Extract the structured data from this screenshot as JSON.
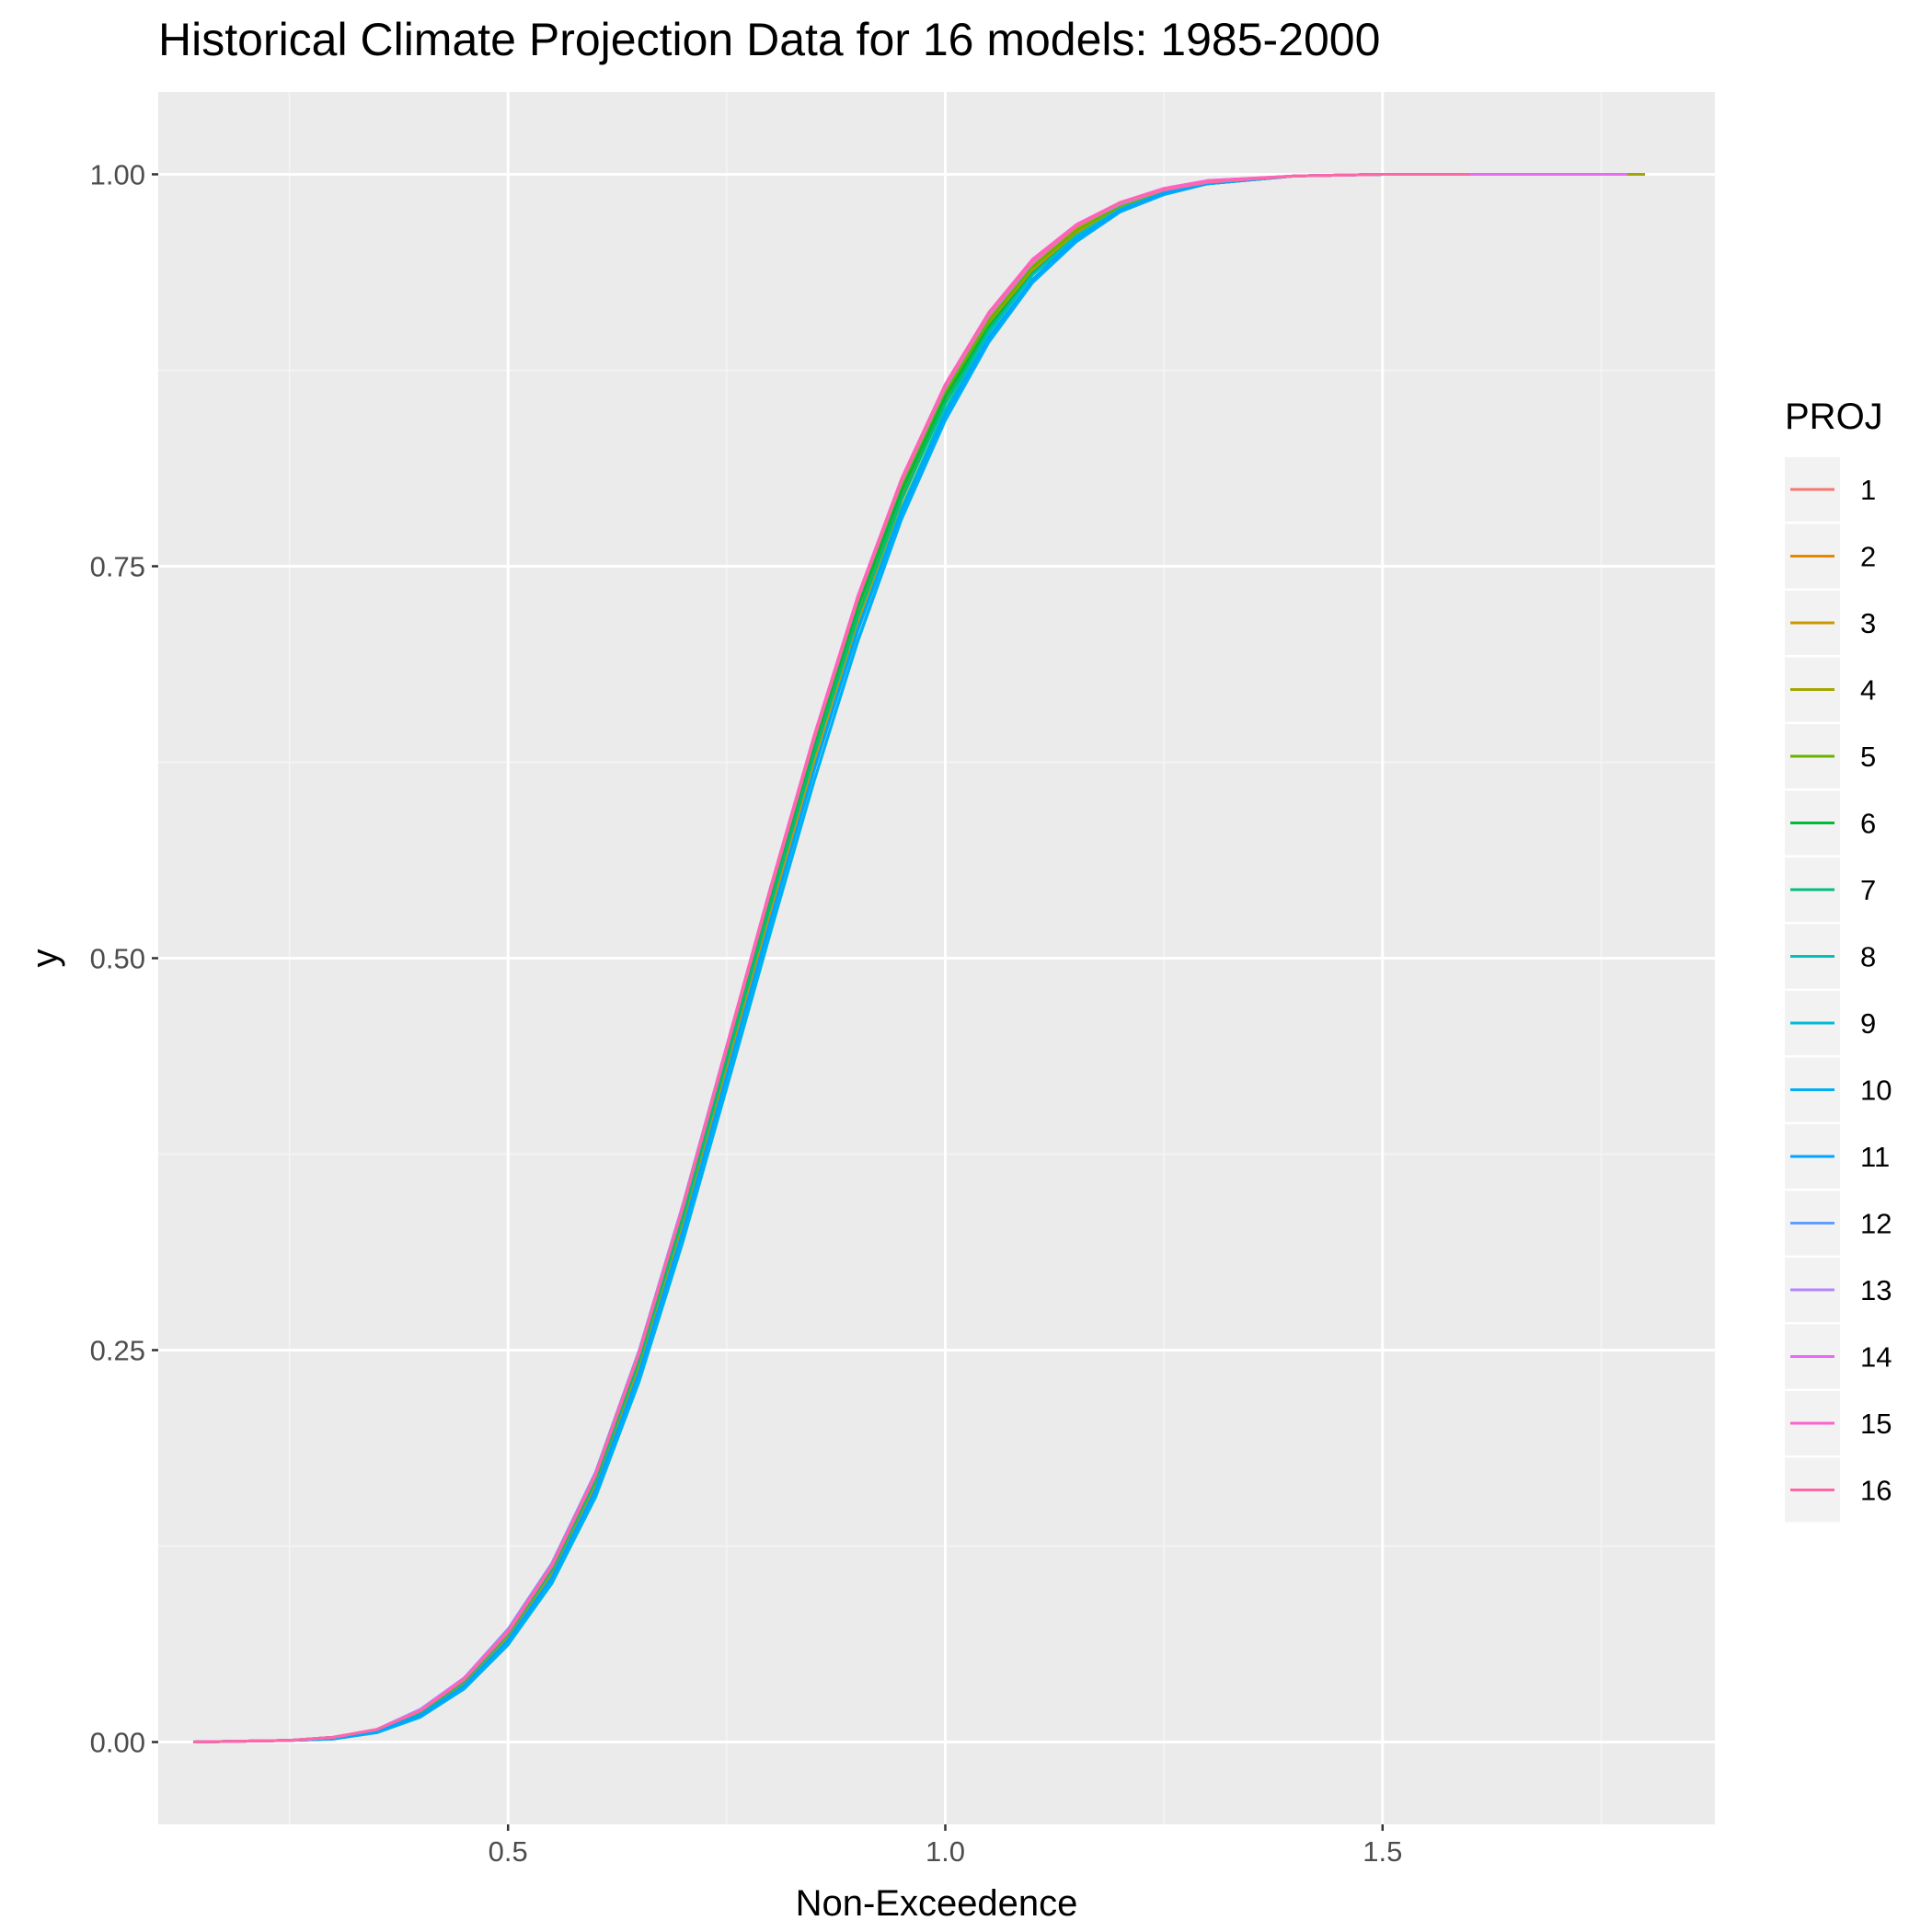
{
  "chart_data": {
    "type": "line",
    "title": "Historical Climate Projection Data for 16 models: 1985-2000",
    "xlabel": "Non-Exceedence",
    "ylabel": "y",
    "xlim": [
      0.1,
      1.88
    ],
    "ylim": [
      -0.0525,
      1.0525
    ],
    "x_ticks": [
      0.5,
      1.0,
      1.5
    ],
    "x_tick_labels": [
      "0.5",
      "1.0",
      "1.5"
    ],
    "y_ticks": [
      0.0,
      0.25,
      0.5,
      0.75,
      1.0
    ],
    "y_tick_labels": [
      "0.00",
      "0.25",
      "0.50",
      "0.75",
      "1.00"
    ],
    "grid": true,
    "legend": {
      "title": "PROJ",
      "position": "right"
    },
    "series": [
      {
        "name": "1",
        "color": "#F8766D",
        "x": [
          0.14,
          0.25,
          0.3,
          0.35,
          0.4,
          0.45,
          0.5,
          0.55,
          0.6,
          0.65,
          0.7,
          0.75,
          0.8,
          0.85,
          0.9,
          0.95,
          1.0,
          1.05,
          1.1,
          1.15,
          1.2,
          1.25,
          1.3,
          1.4,
          1.5,
          1.6
        ],
        "y": [
          0.0,
          0.001,
          0.003,
          0.008,
          0.02,
          0.04,
          0.07,
          0.112,
          0.17,
          0.248,
          0.34,
          0.441,
          0.541,
          0.638,
          0.727,
          0.802,
          0.863,
          0.909,
          0.943,
          0.966,
          0.981,
          0.99,
          0.995,
          0.999,
          1.0,
          1.0
        ]
      },
      {
        "name": "2",
        "color": "#E58700",
        "x": [
          0.14,
          0.25,
          0.3,
          0.35,
          0.4,
          0.45,
          0.5,
          0.55,
          0.6,
          0.65,
          0.7,
          0.75,
          0.8,
          0.85,
          0.9,
          0.95,
          1.0,
          1.05,
          1.1,
          1.15,
          1.2,
          1.25,
          1.3,
          1.4,
          1.5,
          1.6
        ],
        "y": [
          0.0,
          0.001,
          0.003,
          0.007,
          0.019,
          0.038,
          0.067,
          0.108,
          0.164,
          0.24,
          0.33,
          0.43,
          0.53,
          0.628,
          0.718,
          0.795,
          0.857,
          0.905,
          0.94,
          0.964,
          0.98,
          0.989,
          0.995,
          0.999,
          1.0,
          1.0
        ]
      },
      {
        "name": "3",
        "color": "#C99800",
        "x": [
          0.14,
          0.25,
          0.3,
          0.35,
          0.4,
          0.45,
          0.5,
          0.55,
          0.6,
          0.65,
          0.7,
          0.75,
          0.8,
          0.85,
          0.9,
          0.95,
          1.0,
          1.05,
          1.1,
          1.15,
          1.2,
          1.25,
          1.3,
          1.4,
          1.5,
          1.6
        ],
        "y": [
          0.0,
          0.001,
          0.003,
          0.007,
          0.018,
          0.037,
          0.066,
          0.106,
          0.161,
          0.236,
          0.326,
          0.425,
          0.525,
          0.623,
          0.714,
          0.792,
          0.855,
          0.903,
          0.939,
          0.963,
          0.979,
          0.989,
          0.995,
          0.999,
          1.0,
          1.0
        ]
      },
      {
        "name": "4",
        "color": "#A3A500",
        "x": [
          0.14,
          0.25,
          0.3,
          0.35,
          0.4,
          0.45,
          0.5,
          0.55,
          0.6,
          0.65,
          0.7,
          0.75,
          0.8,
          0.85,
          0.9,
          0.95,
          1.0,
          1.05,
          1.1,
          1.15,
          1.2,
          1.25,
          1.3,
          1.4,
          1.5,
          1.6,
          1.8
        ],
        "y": [
          0.0,
          0.001,
          0.003,
          0.007,
          0.019,
          0.038,
          0.068,
          0.109,
          0.166,
          0.242,
          0.333,
          0.433,
          0.533,
          0.631,
          0.721,
          0.797,
          0.859,
          0.906,
          0.941,
          0.965,
          0.98,
          0.99,
          0.995,
          0.999,
          1.0,
          1.0,
          1.0
        ]
      },
      {
        "name": "5",
        "color": "#6BB100",
        "x": [
          0.14,
          0.25,
          0.3,
          0.35,
          0.4,
          0.45,
          0.5,
          0.55,
          0.6,
          0.65,
          0.7,
          0.75,
          0.8,
          0.85,
          0.9,
          0.95,
          1.0,
          1.05,
          1.1,
          1.15,
          1.2,
          1.25,
          1.3,
          1.4,
          1.5,
          1.6
        ],
        "y": [
          0.0,
          0.001,
          0.003,
          0.008,
          0.02,
          0.04,
          0.07,
          0.111,
          0.169,
          0.246,
          0.338,
          0.439,
          0.539,
          0.636,
          0.725,
          0.8,
          0.861,
          0.907,
          0.941,
          0.964,
          0.98,
          0.989,
          0.995,
          0.999,
          1.0,
          1.0
        ]
      },
      {
        "name": "6",
        "color": "#00BA38",
        "x": [
          0.14,
          0.25,
          0.3,
          0.35,
          0.4,
          0.45,
          0.5,
          0.55,
          0.6,
          0.65,
          0.7,
          0.75,
          0.8,
          0.85,
          0.9,
          0.95,
          1.0,
          1.05,
          1.1,
          1.15,
          1.2,
          1.25,
          1.3,
          1.4,
          1.5,
          1.6
        ],
        "y": [
          0.0,
          0.001,
          0.003,
          0.008,
          0.02,
          0.04,
          0.071,
          0.113,
          0.171,
          0.248,
          0.34,
          0.441,
          0.54,
          0.636,
          0.724,
          0.798,
          0.858,
          0.903,
          0.937,
          0.961,
          0.977,
          0.988,
          0.994,
          0.999,
          1.0,
          1.0
        ]
      },
      {
        "name": "7",
        "color": "#00BF7D",
        "x": [
          0.14,
          0.25,
          0.3,
          0.35,
          0.4,
          0.45,
          0.5,
          0.55,
          0.6,
          0.65,
          0.7,
          0.75,
          0.8,
          0.85,
          0.9,
          0.95,
          1.0,
          1.05,
          1.1,
          1.15,
          1.2,
          1.25,
          1.3,
          1.4,
          1.5,
          1.6
        ],
        "y": [
          0.0,
          0.001,
          0.003,
          0.007,
          0.019,
          0.039,
          0.069,
          0.11,
          0.167,
          0.244,
          0.335,
          0.435,
          0.534,
          0.63,
          0.718,
          0.793,
          0.854,
          0.901,
          0.936,
          0.96,
          0.977,
          0.987,
          0.994,
          0.999,
          1.0,
          1.0
        ]
      },
      {
        "name": "8",
        "color": "#00C0B8",
        "x": [
          0.14,
          0.25,
          0.3,
          0.35,
          0.4,
          0.45,
          0.5,
          0.55,
          0.6,
          0.65,
          0.7,
          0.75,
          0.8,
          0.85,
          0.9,
          0.95,
          1.0,
          1.05,
          1.1,
          1.15,
          1.2,
          1.25,
          1.3,
          1.4,
          1.5,
          1.6
        ],
        "y": [
          0.0,
          0.001,
          0.002,
          0.006,
          0.017,
          0.035,
          0.064,
          0.104,
          0.16,
          0.235,
          0.325,
          0.424,
          0.523,
          0.62,
          0.71,
          0.787,
          0.85,
          0.899,
          0.936,
          0.961,
          0.978,
          0.988,
          0.994,
          0.999,
          1.0,
          1.0
        ]
      },
      {
        "name": "9",
        "color": "#00BCD8",
        "x": [
          0.14,
          0.25,
          0.3,
          0.35,
          0.4,
          0.45,
          0.5,
          0.55,
          0.6,
          0.65,
          0.7,
          0.75,
          0.8,
          0.85,
          0.9,
          0.95,
          1.0,
          1.05,
          1.1,
          1.15,
          1.2,
          1.25,
          1.3,
          1.4,
          1.5,
          1.6
        ],
        "y": [
          0.0,
          0.001,
          0.002,
          0.006,
          0.016,
          0.034,
          0.062,
          0.101,
          0.156,
          0.23,
          0.319,
          0.417,
          0.516,
          0.613,
          0.703,
          0.781,
          0.845,
          0.895,
          0.933,
          0.959,
          0.977,
          0.988,
          0.994,
          0.999,
          1.0,
          1.0
        ]
      },
      {
        "name": "10",
        "color": "#00B0F6",
        "x": [
          0.14,
          0.25,
          0.3,
          0.35,
          0.4,
          0.45,
          0.5,
          0.55,
          0.6,
          0.65,
          0.7,
          0.75,
          0.8,
          0.85,
          0.9,
          0.95,
          1.0,
          1.05,
          1.1,
          1.15,
          1.2,
          1.25,
          1.3,
          1.4,
          1.5,
          1.6
        ],
        "y": [
          0.0,
          0.001,
          0.002,
          0.006,
          0.016,
          0.034,
          0.062,
          0.102,
          0.157,
          0.231,
          0.32,
          0.418,
          0.517,
          0.613,
          0.702,
          0.78,
          0.843,
          0.893,
          0.931,
          0.957,
          0.976,
          0.987,
          0.994,
          0.999,
          1.0,
          1.0
        ]
      },
      {
        "name": "11",
        "color": "#00A5FF",
        "x": [
          0.14,
          0.25,
          0.3,
          0.35,
          0.4,
          0.45,
          0.5,
          0.55,
          0.6,
          0.65,
          0.7,
          0.75,
          0.8,
          0.85,
          0.9,
          0.95,
          1.0,
          1.05,
          1.1,
          1.15,
          1.2,
          1.25,
          1.3,
          1.4,
          1.5,
          1.6
        ],
        "y": [
          0.0,
          0.001,
          0.002,
          0.007,
          0.017,
          0.036,
          0.065,
          0.105,
          0.161,
          0.236,
          0.326,
          0.425,
          0.524,
          0.62,
          0.709,
          0.785,
          0.847,
          0.896,
          0.933,
          0.959,
          0.977,
          0.988,
          0.994,
          0.999,
          1.0,
          1.0
        ]
      },
      {
        "name": "12",
        "color": "#619CFF",
        "x": [
          0.14,
          0.25,
          0.3,
          0.35,
          0.4,
          0.45,
          0.5,
          0.55,
          0.6,
          0.65,
          0.7,
          0.75,
          0.8,
          0.85,
          0.9,
          0.95,
          1.0,
          1.05,
          1.1,
          1.15,
          1.2,
          1.25,
          1.3,
          1.4,
          1.5,
          1.6
        ],
        "y": [
          0.0,
          0.001,
          0.003,
          0.008,
          0.021,
          0.041,
          0.072,
          0.114,
          0.172,
          0.25,
          0.343,
          0.444,
          0.544,
          0.641,
          0.73,
          0.805,
          0.865,
          0.911,
          0.945,
          0.967,
          0.982,
          0.99,
          0.995,
          0.999,
          1.0,
          1.0
        ]
      },
      {
        "name": "13",
        "color": "#B983FF",
        "x": [
          0.14,
          0.25,
          0.3,
          0.35,
          0.4,
          0.45,
          0.5,
          0.55,
          0.6,
          0.65,
          0.7,
          0.75,
          0.8,
          0.85,
          0.9,
          0.95,
          1.0,
          1.05,
          1.1,
          1.15,
          1.2,
          1.25,
          1.3,
          1.4,
          1.5,
          1.6
        ],
        "y": [
          0.0,
          0.001,
          0.003,
          0.008,
          0.021,
          0.041,
          0.071,
          0.113,
          0.171,
          0.249,
          0.342,
          0.443,
          0.543,
          0.64,
          0.729,
          0.804,
          0.864,
          0.91,
          0.944,
          0.967,
          0.981,
          0.99,
          0.995,
          0.999,
          1.0,
          1.0
        ]
      },
      {
        "name": "14",
        "color": "#E76BF3",
        "x": [
          0.14,
          0.25,
          0.3,
          0.35,
          0.4,
          0.45,
          0.5,
          0.55,
          0.6,
          0.65,
          0.7,
          0.75,
          0.8,
          0.85,
          0.9,
          0.95,
          1.0,
          1.05,
          1.1,
          1.15,
          1.2,
          1.25,
          1.3,
          1.4,
          1.5,
          1.6,
          1.78
        ],
        "y": [
          0.0,
          0.001,
          0.003,
          0.008,
          0.02,
          0.041,
          0.071,
          0.113,
          0.171,
          0.249,
          0.342,
          0.443,
          0.543,
          0.64,
          0.729,
          0.805,
          0.866,
          0.912,
          0.945,
          0.968,
          0.982,
          0.991,
          0.996,
          0.999,
          1.0,
          1.0,
          1.0
        ]
      },
      {
        "name": "15",
        "color": "#FD61D1",
        "x": [
          0.14,
          0.25,
          0.3,
          0.35,
          0.4,
          0.45,
          0.5,
          0.55,
          0.6,
          0.65,
          0.7,
          0.75,
          0.8,
          0.85,
          0.9,
          0.95,
          1.0,
          1.05,
          1.1,
          1.15,
          1.2,
          1.25,
          1.3,
          1.4,
          1.5,
          1.6
        ],
        "y": [
          0.0,
          0.001,
          0.003,
          0.008,
          0.02,
          0.04,
          0.071,
          0.113,
          0.171,
          0.249,
          0.342,
          0.444,
          0.545,
          0.642,
          0.731,
          0.806,
          0.866,
          0.912,
          0.946,
          0.968,
          0.982,
          0.991,
          0.996,
          0.999,
          1.0,
          1.0
        ]
      },
      {
        "name": "16",
        "color": "#FF67A4",
        "x": [
          0.14,
          0.25,
          0.3,
          0.35,
          0.4,
          0.45,
          0.5,
          0.55,
          0.6,
          0.65,
          0.7,
          0.75,
          0.8,
          0.85,
          0.9,
          0.95,
          1.0,
          1.05,
          1.1,
          1.15,
          1.2,
          1.25,
          1.3,
          1.4,
          1.5,
          1.6
        ],
        "y": [
          0.0,
          0.001,
          0.003,
          0.008,
          0.02,
          0.04,
          0.07,
          0.112,
          0.17,
          0.248,
          0.341,
          0.442,
          0.543,
          0.64,
          0.729,
          0.805,
          0.865,
          0.911,
          0.945,
          0.967,
          0.982,
          0.99,
          0.995,
          0.999,
          1.0,
          1.0
        ]
      }
    ]
  },
  "style": {
    "panel_bg": "#EBEBEB",
    "grid_major": "#FFFFFF",
    "grid_minor": "#F5F5F5",
    "legend_key_bg": "#F2F2F2",
    "tick_color": "#333333"
  }
}
